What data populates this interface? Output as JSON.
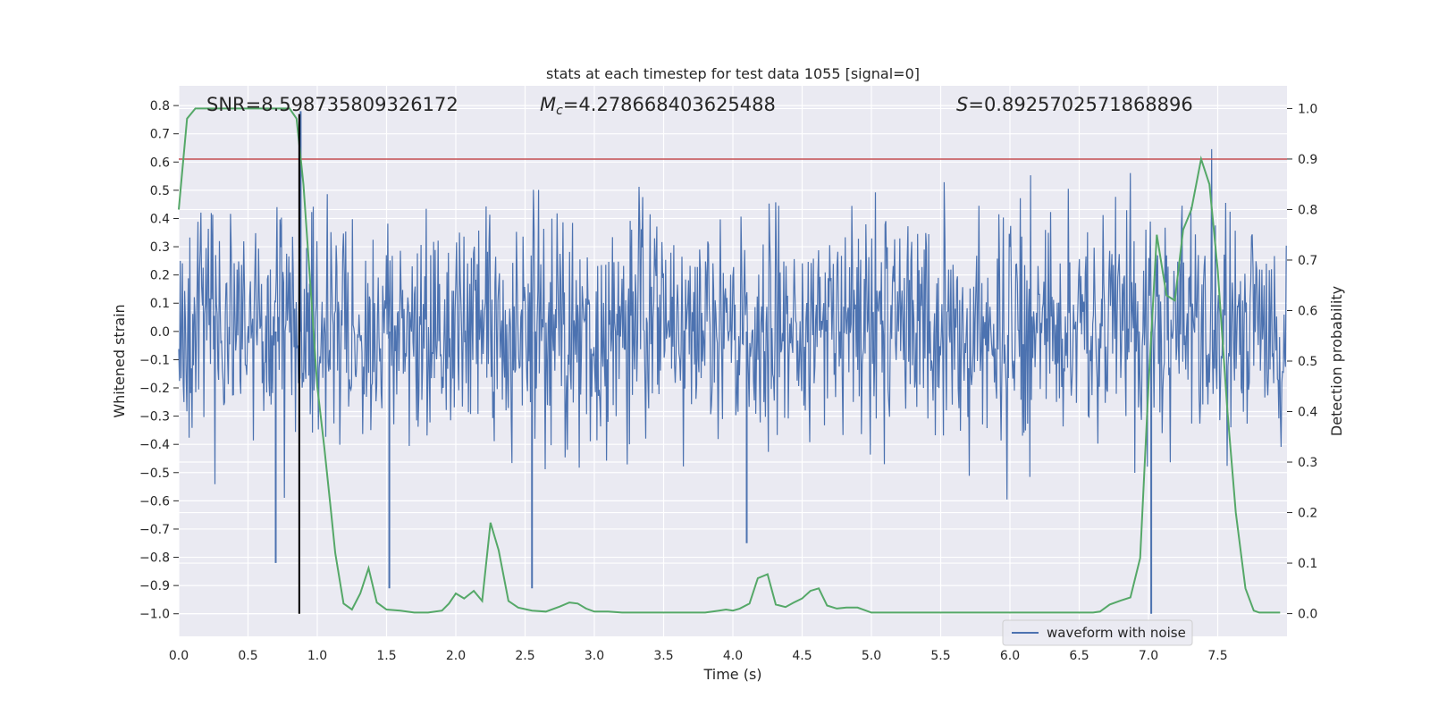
{
  "chart_data": {
    "type": "line",
    "title": "stats at each timestep for test data 1055 [signal=0]",
    "xlabel": "Time (s)",
    "ylabel": "Whitened strain",
    "y2label": "Detection probability",
    "xlim": [
      0,
      8
    ],
    "ylim": [
      -1.08,
      0.87
    ],
    "y2lim": [
      -0.045,
      1.045
    ],
    "x_ticks": [
      0.0,
      0.5,
      1.0,
      1.5,
      2.0,
      2.5,
      3.0,
      3.5,
      4.0,
      4.5,
      5.0,
      5.5,
      6.0,
      6.5,
      7.0,
      7.5
    ],
    "x_tick_labels": [
      "0.0",
      "0.5",
      "1.0",
      "1.5",
      "2.0",
      "2.5",
      "3.0",
      "3.5",
      "4.0",
      "4.5",
      "5.0",
      "5.5",
      "6.0",
      "6.5",
      "7.0",
      "7.5"
    ],
    "y_ticks": [
      0.8,
      0.7,
      0.6,
      0.5,
      0.4,
      0.3,
      0.2,
      0.1,
      0.0,
      -0.1,
      -0.2,
      -0.3,
      -0.4,
      -0.5,
      -0.6,
      -0.7,
      -0.8,
      -0.9,
      -1.0
    ],
    "y_tick_labels": [
      "0.8",
      "0.7",
      "0.6",
      "0.5",
      "0.4",
      "0.3",
      "0.2",
      "0.1",
      "0.0",
      "−0.1",
      "−0.2",
      "−0.3",
      "−0.4",
      "−0.5",
      "−0.6",
      "−0.7",
      "−0.8",
      "−0.9",
      "−1.0"
    ],
    "y2_ticks": [
      1.0,
      0.9,
      0.8,
      0.7,
      0.6,
      0.5,
      0.4,
      0.3,
      0.2,
      0.1,
      0.0
    ],
    "y2_tick_labels": [
      "1.0",
      "0.9",
      "0.8",
      "0.7",
      "0.6",
      "0.5",
      "0.4",
      "0.3",
      "0.2",
      "0.1",
      "0.0"
    ],
    "grid": true,
    "legend": {
      "entries": [
        "waveform with noise"
      ],
      "placement": "lower-right"
    },
    "annotations": {
      "snr": "SNR=8.598735809326172",
      "mc_symbol": "M",
      "mc_subscript": "c",
      "mc_value": "=4.278668403625488",
      "s_symbol": "S",
      "s_value": "=0.8925702571868896"
    },
    "threshold": {
      "y2": 0.9
    },
    "vline": {
      "x": 0.87
    },
    "series": [
      {
        "name": "waveform with noise",
        "color": "#4c72b0",
        "style": "dense noise, approx. uniform band ±0.45 with spikes to ±0.8; extreme spike at x=0.88 reaching 0.78 and at x=7.02 reaching −1.0"
      },
      {
        "name": "",
        "color": "#55a868",
        "axis": "y2",
        "x": [
          0.0,
          0.06,
          0.12,
          0.2,
          0.3,
          0.4,
          0.5,
          0.6,
          0.7,
          0.8,
          0.85,
          0.9,
          0.95,
          1.0,
          1.05,
          1.1,
          1.13,
          1.19,
          1.25,
          1.31,
          1.37,
          1.43,
          1.5,
          1.6,
          1.7,
          1.8,
          1.9,
          1.95,
          2.0,
          2.06,
          2.13,
          2.19,
          2.25,
          2.31,
          2.38,
          2.45,
          2.55,
          2.65,
          2.75,
          2.82,
          2.88,
          2.94,
          3.0,
          3.1,
          3.2,
          3.3,
          3.5,
          3.7,
          3.8,
          3.9,
          3.95,
          4.0,
          4.05,
          4.12,
          4.18,
          4.25,
          4.31,
          4.38,
          4.44,
          4.5,
          4.56,
          4.62,
          4.68,
          4.75,
          4.82,
          4.9,
          5.0,
          5.2,
          5.5,
          5.8,
          6.0,
          6.2,
          6.5,
          6.6,
          6.65,
          6.72,
          6.8,
          6.87,
          6.94,
          7.0,
          7.06,
          7.13,
          7.19,
          7.25,
          7.31,
          7.38,
          7.44,
          7.5,
          7.57,
          7.63,
          7.7,
          7.76,
          7.8,
          7.95
        ],
        "y": [
          0.8,
          0.98,
          1.0,
          1.0,
          1.0,
          1.0,
          1.0,
          1.0,
          1.0,
          1.0,
          0.98,
          0.85,
          0.65,
          0.45,
          0.33,
          0.2,
          0.12,
          0.02,
          0.008,
          0.04,
          0.09,
          0.022,
          0.008,
          0.006,
          0.002,
          0.002,
          0.006,
          0.02,
          0.04,
          0.03,
          0.045,
          0.025,
          0.18,
          0.125,
          0.025,
          0.012,
          0.006,
          0.004,
          0.014,
          0.022,
          0.02,
          0.01,
          0.004,
          0.004,
          0.002,
          0.002,
          0.002,
          0.002,
          0.002,
          0.006,
          0.008,
          0.006,
          0.01,
          0.02,
          0.07,
          0.078,
          0.018,
          0.013,
          0.022,
          0.03,
          0.045,
          0.05,
          0.016,
          0.01,
          0.012,
          0.012,
          0.002,
          0.002,
          0.002,
          0.002,
          0.002,
          0.002,
          0.002,
          0.002,
          0.004,
          0.018,
          0.026,
          0.032,
          0.11,
          0.45,
          0.75,
          0.63,
          0.62,
          0.76,
          0.8,
          0.9,
          0.85,
          0.68,
          0.4,
          0.2,
          0.05,
          0.006,
          0.002,
          0.002
        ]
      }
    ]
  }
}
